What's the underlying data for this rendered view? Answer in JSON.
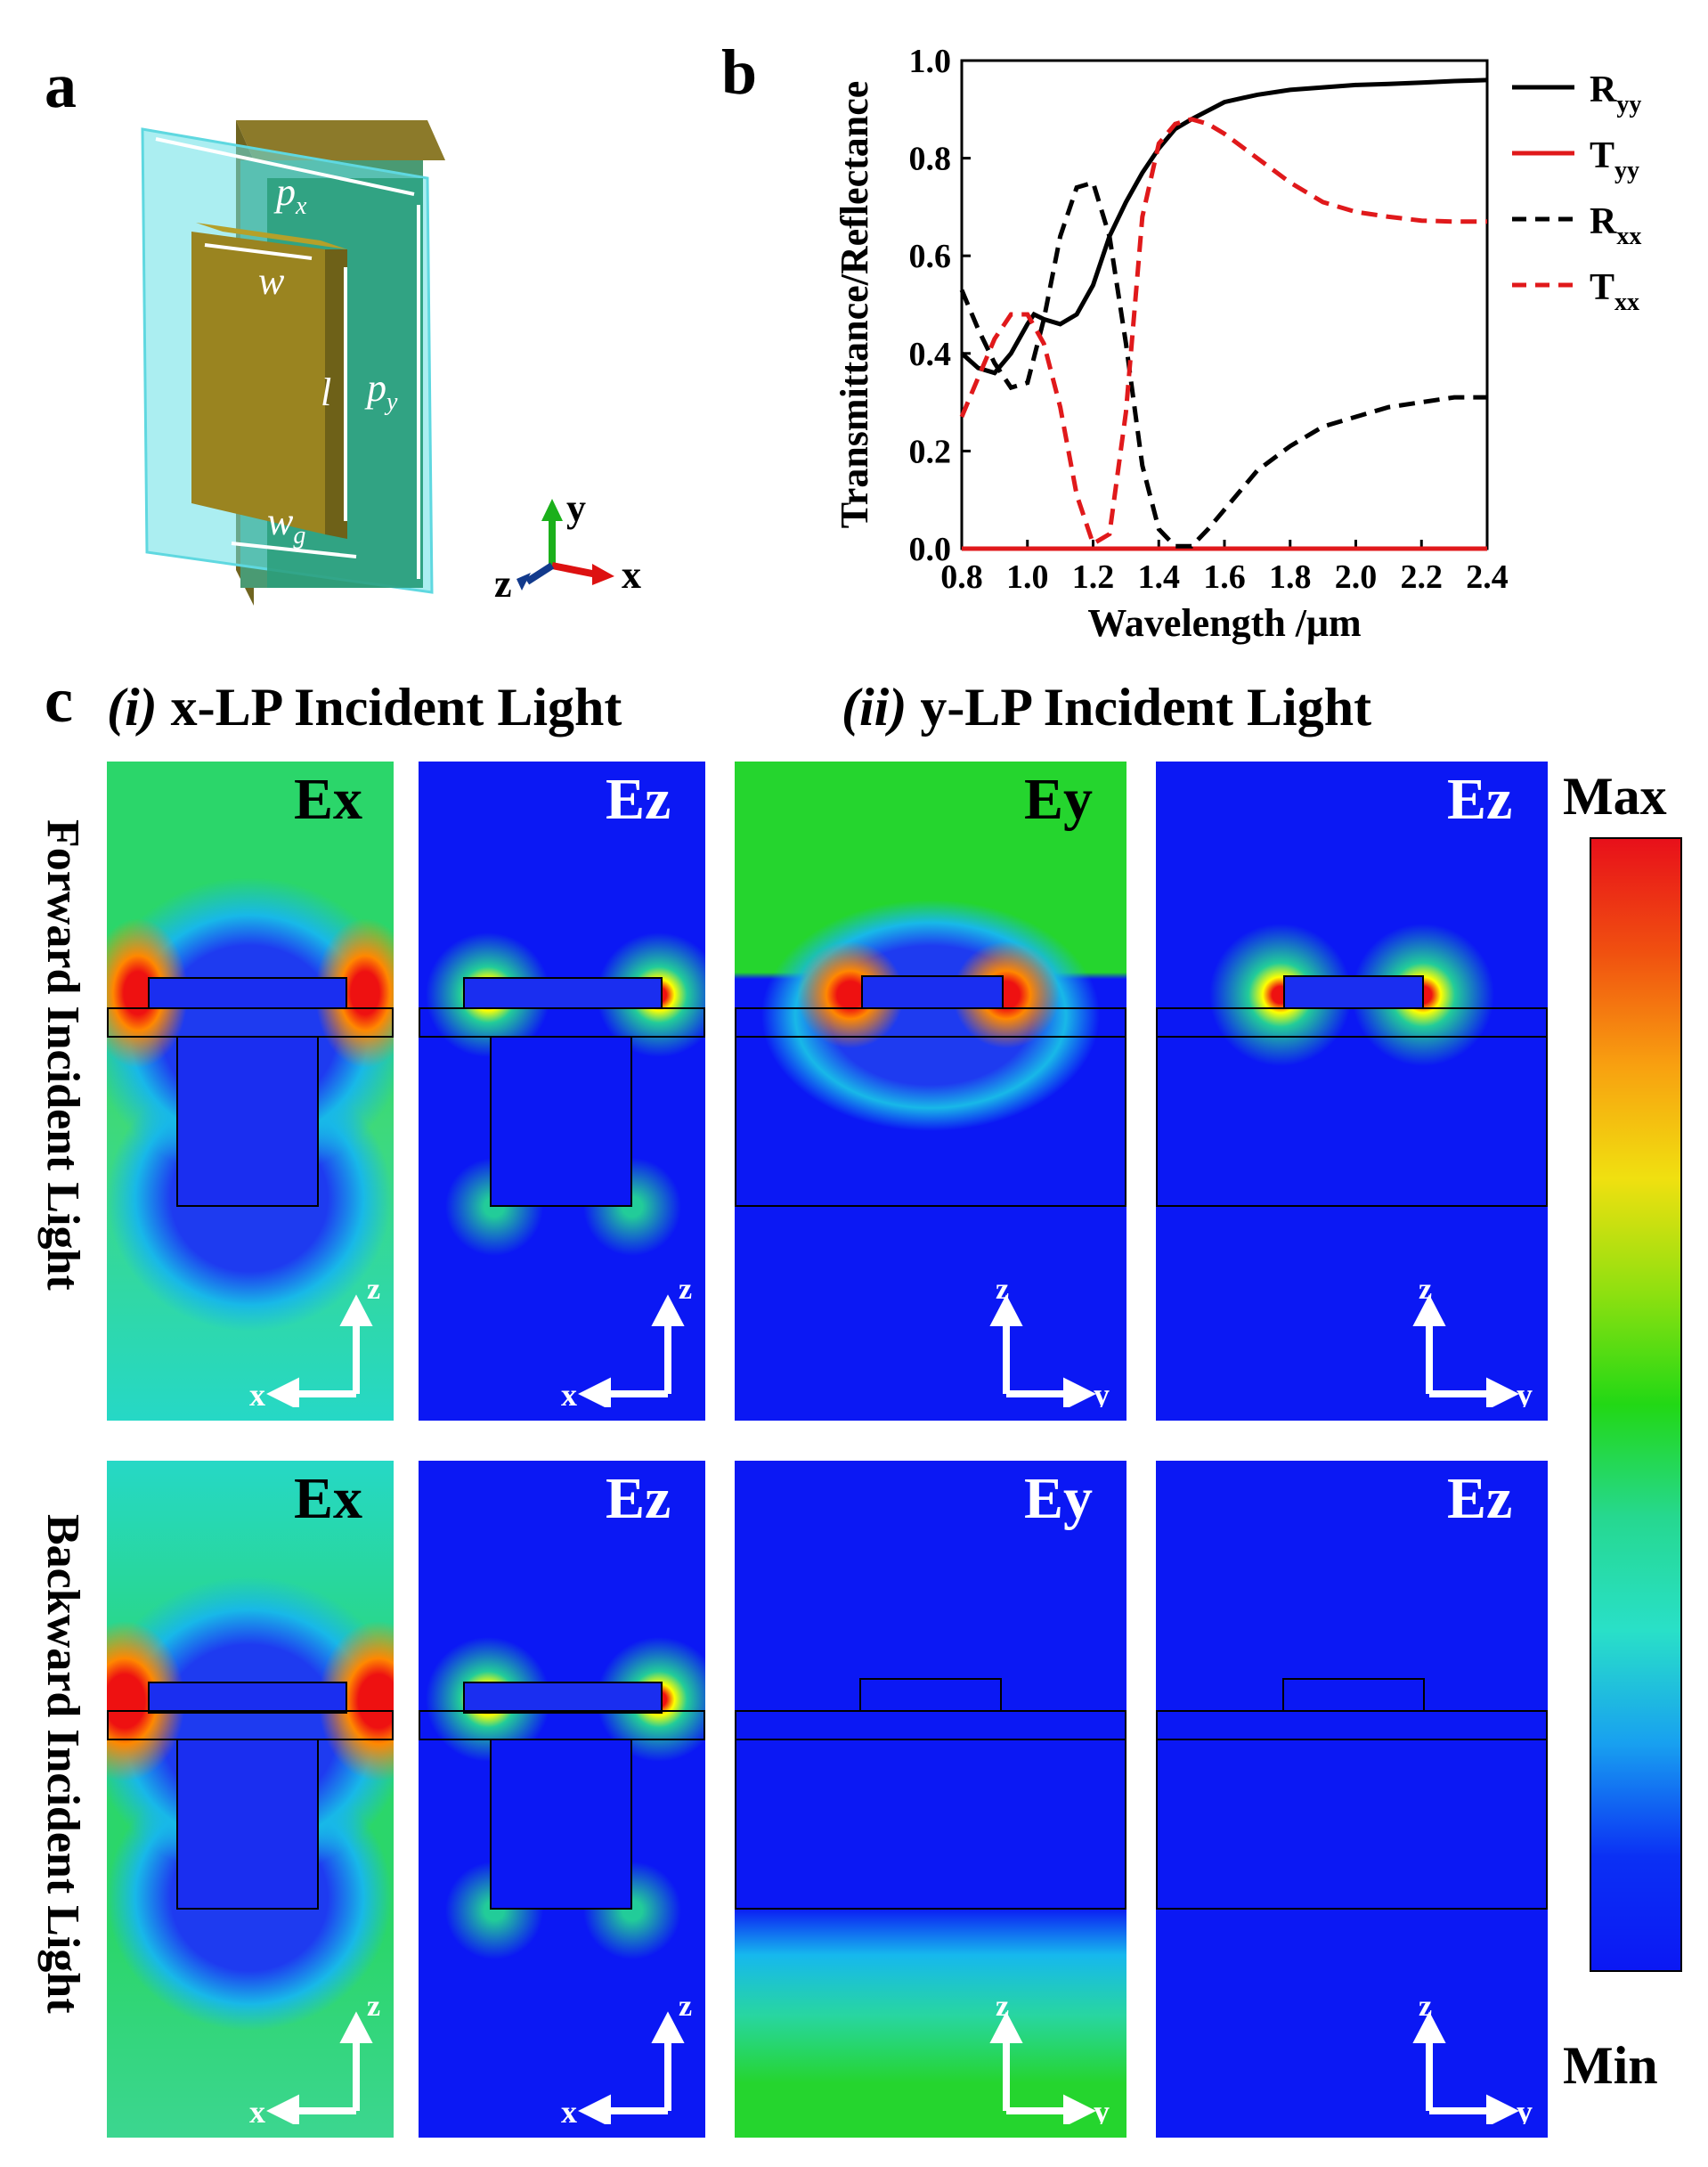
{
  "panel_a": {
    "letter": "a",
    "labels": {
      "px": "p",
      "px_sub": "x",
      "py": "p",
      "py_sub": "y",
      "w": "w",
      "l": "l",
      "wg": "w",
      "wg_sub": "g"
    },
    "axes": {
      "y": "y",
      "z": "z",
      "x": "x"
    }
  },
  "panel_b": {
    "letter": "b"
  },
  "chart_data": {
    "type": "line",
    "xlabel": "Wavelength /μm",
    "ylabel": "Transmittance/Reflectance",
    "xlim": [
      0.8,
      2.4
    ],
    "ylim": [
      0.0,
      1.0
    ],
    "xticks": [
      "0.8",
      "1.0",
      "1.2",
      "1.4",
      "1.6",
      "1.8",
      "2.0",
      "2.2",
      "2.4"
    ],
    "yticks": [
      "0.0",
      "0.2",
      "0.4",
      "0.6",
      "0.8",
      "1.0"
    ],
    "grid": false,
    "legend_position": "right",
    "series": [
      {
        "name": "R",
        "sub": "yy",
        "color": "#000000",
        "dash": "solid",
        "x": [
          0.8,
          0.85,
          0.9,
          0.95,
          1.0,
          1.02,
          1.05,
          1.1,
          1.15,
          1.2,
          1.25,
          1.3,
          1.35,
          1.4,
          1.45,
          1.5,
          1.6,
          1.7,
          1.8,
          1.9,
          2.0,
          2.1,
          2.2,
          2.3,
          2.4
        ],
        "y": [
          0.4,
          0.37,
          0.36,
          0.4,
          0.46,
          0.48,
          0.47,
          0.46,
          0.48,
          0.54,
          0.64,
          0.71,
          0.77,
          0.82,
          0.86,
          0.88,
          0.915,
          0.93,
          0.94,
          0.945,
          0.95,
          0.952,
          0.955,
          0.958,
          0.96
        ]
      },
      {
        "name": "T",
        "sub": "yy",
        "color": "#e0191b",
        "dash": "solid",
        "x": [
          0.8,
          2.4
        ],
        "y": [
          0.0,
          0.0
        ]
      },
      {
        "name": "R",
        "sub": "xx",
        "color": "#000000",
        "dash": "dashed",
        "x": [
          0.8,
          0.85,
          0.9,
          0.95,
          1.0,
          1.05,
          1.1,
          1.15,
          1.2,
          1.25,
          1.3,
          1.35,
          1.4,
          1.45,
          1.5,
          1.55,
          1.6,
          1.7,
          1.8,
          1.9,
          2.0,
          2.1,
          2.2,
          2.3,
          2.4
        ],
        "y": [
          0.53,
          0.45,
          0.38,
          0.33,
          0.34,
          0.47,
          0.64,
          0.74,
          0.75,
          0.64,
          0.42,
          0.17,
          0.04,
          0.005,
          0.005,
          0.04,
          0.08,
          0.16,
          0.21,
          0.25,
          0.27,
          0.29,
          0.3,
          0.31,
          0.31
        ]
      },
      {
        "name": "T",
        "sub": "xx",
        "color": "#e0191b",
        "dash": "dashed",
        "x": [
          0.8,
          0.85,
          0.9,
          0.95,
          1.0,
          1.05,
          1.1,
          1.15,
          1.2,
          1.25,
          1.3,
          1.35,
          1.4,
          1.45,
          1.5,
          1.55,
          1.6,
          1.7,
          1.8,
          1.9,
          2.0,
          2.1,
          2.2,
          2.3,
          2.4
        ],
        "y": [
          0.27,
          0.35,
          0.43,
          0.48,
          0.48,
          0.42,
          0.29,
          0.11,
          0.01,
          0.03,
          0.28,
          0.68,
          0.83,
          0.87,
          0.88,
          0.87,
          0.85,
          0.8,
          0.75,
          0.71,
          0.69,
          0.68,
          0.672,
          0.67,
          0.67
        ]
      }
    ]
  },
  "panel_c": {
    "letter": "c",
    "col_i": "(i) x-LP Incident Light",
    "col_i_num": "(i)",
    "col_i_text": " x-LP Incident Light",
    "col_ii_num": "(ii)",
    "col_ii_text": " y-LP Incident Light",
    "row_forward": "Forward Incident Light",
    "row_backward": "Backward Incident Light",
    "maps": [
      {
        "label": "Ex",
        "h_axis": "x"
      },
      {
        "label": "Ez",
        "h_axis": "x"
      },
      {
        "label": "Ey",
        "h_axis": "y"
      },
      {
        "label": "Ez",
        "h_axis": "y"
      },
      {
        "label": "Ex",
        "h_axis": "x"
      },
      {
        "label": "Ez",
        "h_axis": "x"
      },
      {
        "label": "Ey",
        "h_axis": "y"
      },
      {
        "label": "Ez",
        "h_axis": "y"
      }
    ],
    "v_axis": "z",
    "colorbar": {
      "max": "Max",
      "min": "Min"
    }
  },
  "colors": {
    "field_blue": "#0b18f4",
    "field_green": "#22d815",
    "field_cyan": "#29e0c8",
    "red": "#e0191b"
  }
}
